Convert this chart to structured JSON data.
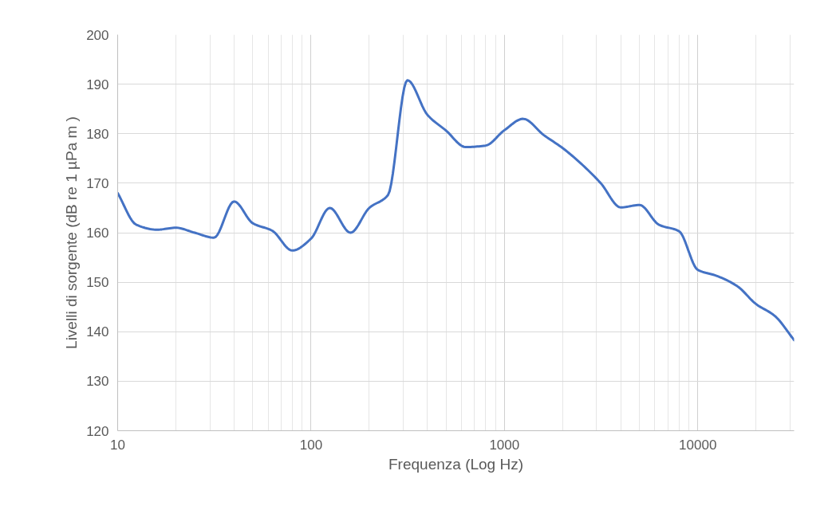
{
  "chart_data": {
    "type": "line",
    "xlabel": "Frequenza (Log Hz)",
    "ylabel": "Livelli di sorgente (dB re 1 µPa m )",
    "log": "x",
    "grid": true,
    "marker": "none",
    "line_style": "solid",
    "x": [
      10,
      12.5,
      16,
      20,
      25,
      31.5,
      40,
      50,
      63,
      80,
      100,
      125,
      160,
      200,
      250,
      315,
      400,
      500,
      630,
      800,
      1000,
      1250,
      1600,
      2000,
      2500,
      3150,
      4000,
      5000,
      6300,
      8000,
      10000,
      12500,
      16000,
      20000,
      25000,
      31500
    ],
    "series": [
      {
        "color": "#4472c4",
        "values": [
          168,
          161.6,
          160.6,
          161,
          160,
          159,
          166.3,
          161.9,
          160.4,
          156.4,
          158.8,
          165,
          160,
          165,
          167.6,
          190.8,
          183.8,
          180.6,
          177.3,
          177.6,
          180.7,
          183,
          179.7,
          177.1,
          173.9,
          170,
          165.1,
          165.6,
          161.6,
          160.3,
          152.5,
          151.3,
          149.2,
          145.6,
          143.2,
          138.3
        ]
      }
    ],
    "xlim": [
      10,
      31500
    ],
    "xticks": [
      10,
      100,
      1000,
      10000
    ],
    "ylim": [
      120,
      200
    ],
    "yticks": [
      120,
      130,
      140,
      150,
      160,
      170,
      180,
      190,
      200
    ]
  }
}
